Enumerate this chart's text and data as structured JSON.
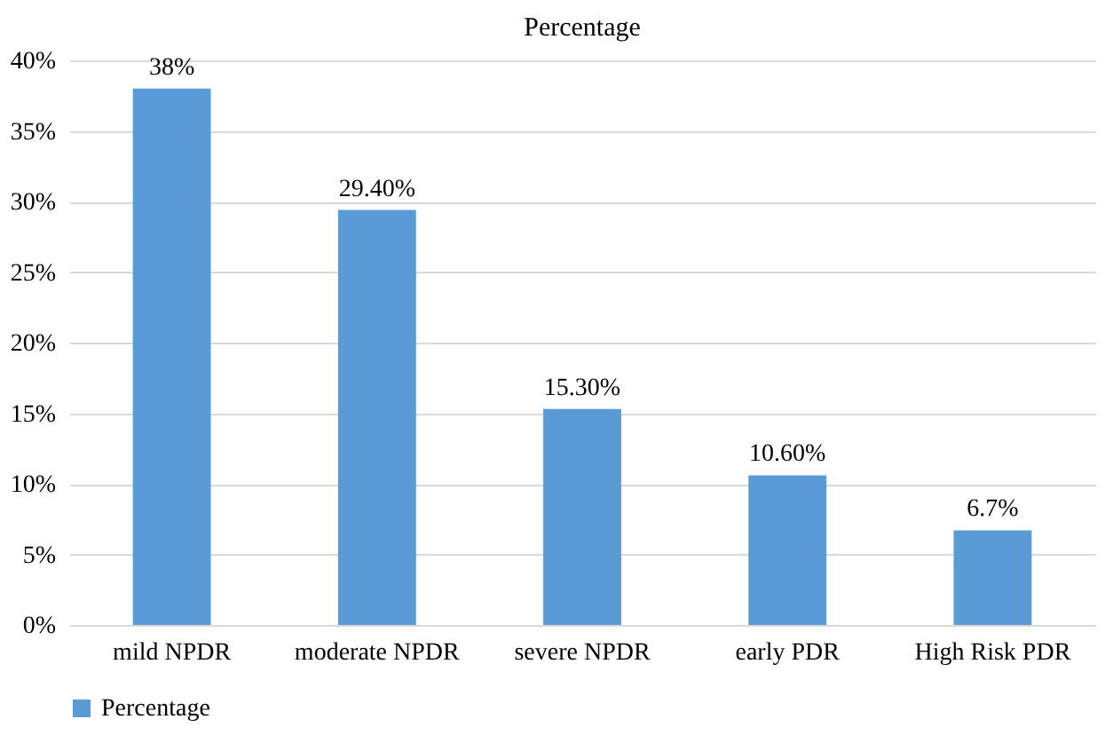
{
  "chart_data": {
    "type": "bar",
    "title": "Percentage",
    "categories": [
      "mild NPDR",
      "moderate NPDR",
      "severe NPDR",
      "early PDR",
      "High Risk PDR"
    ],
    "series": [
      {
        "name": "Percentage",
        "color": "#5b9bd5",
        "values": [
          38,
          29.4,
          15.3,
          10.6,
          6.7
        ],
        "value_labels": [
          "38%",
          "29.40%",
          "15.30%",
          "10.60%",
          "6.7%"
        ]
      }
    ],
    "ylim": [
      0,
      40
    ],
    "yticks": [
      {
        "value": 0,
        "label": "0%"
      },
      {
        "value": 5,
        "label": "5%"
      },
      {
        "value": 10,
        "label": "10%"
      },
      {
        "value": 15,
        "label": "15%"
      },
      {
        "value": 20,
        "label": "20%"
      },
      {
        "value": 25,
        "label": "25%"
      },
      {
        "value": 30,
        "label": "30%"
      },
      {
        "value": 35,
        "label": "35%"
      },
      {
        "value": 40,
        "label": "40%"
      }
    ],
    "grid": "y",
    "legend": "bottom"
  }
}
